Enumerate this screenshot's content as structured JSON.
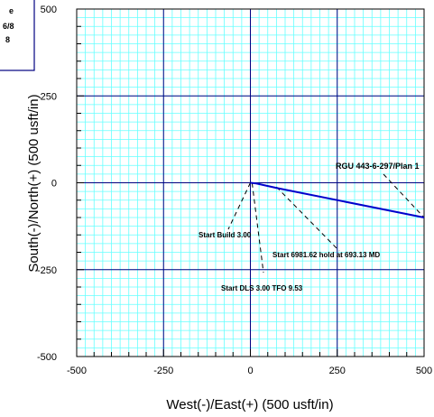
{
  "chart_data": {
    "type": "line",
    "xlabel": "West(-)/East(+) (500 usft/in)",
    "ylabel": "South(-)/North(+) (500 usft/in)",
    "xlim": [
      -500,
      500
    ],
    "ylim": [
      -500,
      500
    ],
    "x_ticks": [
      -500,
      -250,
      0,
      250,
      500
    ],
    "y_ticks": [
      500,
      250,
      0,
      -250,
      -500
    ],
    "grid": true,
    "series": [
      {
        "name": "RGU 443-6-297/Plan 1",
        "color": "#0000cc",
        "x": [
          0,
          17,
          80,
          500
        ],
        "y": [
          0,
          -2,
          -16,
          -100
        ]
      }
    ],
    "annotations": [
      {
        "text": "Start Build 3.00",
        "point": [
          0,
          0
        ]
      },
      {
        "text": "Start 6981.62 hold at 693.13 MD",
        "point": [
          75,
          -12
        ]
      },
      {
        "text": "Start DLS 3.00 TFO 9.53",
        "point": [
          5,
          -1
        ]
      }
    ],
    "series_label": {
      "text": "RGU 443-6-297/Plan 1",
      "color": "#0000cc"
    },
    "legend_box": {
      "lines": [
        "e",
        "6/8",
        "8"
      ]
    }
  },
  "colors": {
    "grid_fine": "#66ffff",
    "grid_major": "#000080",
    "path": "#0000cc",
    "legend_border": "#000080"
  }
}
